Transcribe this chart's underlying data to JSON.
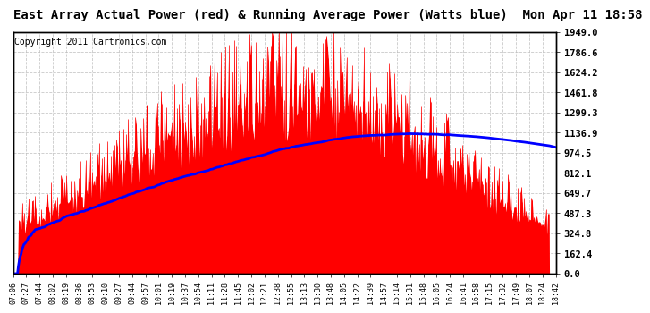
{
  "title": "East Array Actual Power (red) & Running Average Power (Watts blue)  Mon Apr 11 18:58",
  "copyright": "Copyright 2011 Cartronics.com",
  "ylabel_values": [
    0.0,
    162.4,
    324.8,
    487.3,
    649.7,
    812.1,
    974.5,
    1136.9,
    1299.3,
    1461.8,
    1624.2,
    1786.6,
    1949.0
  ],
  "ymax": 1949.0,
  "ymin": 0.0,
  "background_color": "#ffffff",
  "bar_color": "#ff0000",
  "avg_color": "#0000ff",
  "grid_color": "#bbbbbb",
  "title_fontsize": 10,
  "copyright_fontsize": 7,
  "tick_labels": [
    "07:06",
    "07:27",
    "07:44",
    "08:02",
    "08:19",
    "08:36",
    "08:53",
    "09:10",
    "09:27",
    "09:44",
    "09:57",
    "10:01",
    "10:19",
    "10:37",
    "10:54",
    "11:11",
    "11:28",
    "11:45",
    "12:02",
    "12:21",
    "12:38",
    "12:55",
    "13:13",
    "13:30",
    "13:48",
    "14:05",
    "14:22",
    "14:39",
    "14:57",
    "15:14",
    "15:31",
    "15:48",
    "16:05",
    "16:24",
    "16:41",
    "16:58",
    "17:15",
    "17:32",
    "17:49",
    "18:07",
    "18:24",
    "18:42"
  ]
}
